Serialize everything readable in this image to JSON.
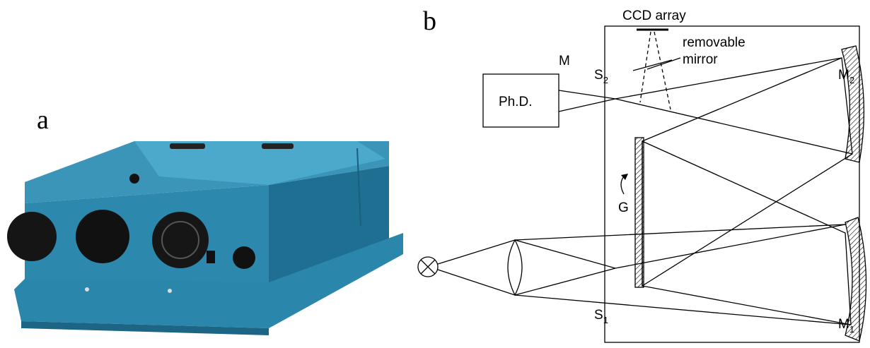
{
  "panel_a": {
    "label": "a"
  },
  "panel_b": {
    "label": "b",
    "ccd": "CCD array",
    "removable_mirror": [
      "removable",
      "mirror"
    ],
    "mirror_m": "M",
    "slit_2": {
      "letter": "S",
      "subscript": "2"
    },
    "slit_1": {
      "letter": "S",
      "subscript": "1"
    },
    "detector": "Ph.D.",
    "grating": "G",
    "mirror_2": {
      "letter": "M",
      "subscript": "2"
    },
    "mirror_1": {
      "letter": "M",
      "subscript": "1"
    }
  }
}
